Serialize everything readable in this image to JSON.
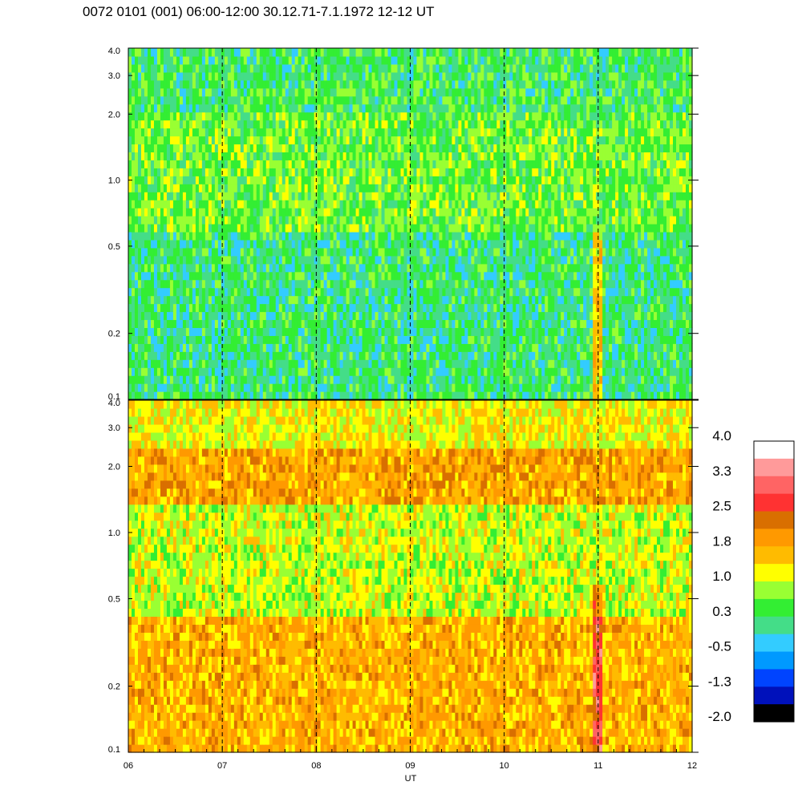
{
  "title": "0072 0101 (001) 06:00-12:00 30.12.71-7.1.1972  12-12 UT",
  "chart_data": {
    "type": "heatmap",
    "title": "0072 0101 (001) 06:00-12:00 30.12.71-7.1.1972  12-12 UT",
    "xlabel": "UT",
    "x_tick_labels": [
      "06",
      "07",
      "08",
      "09",
      "10",
      "11",
      "12"
    ],
    "x_range": [
      6,
      12
    ],
    "dashed_vertical_lines_at": [
      7,
      8,
      9,
      10,
      11
    ],
    "y_scale": "log",
    "y_range": [
      0.1,
      4.0
    ],
    "y_tick_labels": [
      "4.0",
      "3.0",
      "2.0",
      "1.0",
      "0.5",
      "0.2",
      "0.1"
    ],
    "y_tick_values": [
      4.0,
      3.0,
      2.0,
      1.0,
      0.5,
      0.2,
      0.1
    ],
    "panels": [
      {
        "name": "upper",
        "dominant_levels_by_band": [
          {
            "y_from": 2.0,
            "y_to": 4.0,
            "level": 0.3
          },
          {
            "y_from": 0.6,
            "y_to": 2.0,
            "level": 0.6
          },
          {
            "y_from": 0.1,
            "y_to": 0.6,
            "level": 0.2
          }
        ]
      },
      {
        "name": "lower",
        "dominant_levels_by_band": [
          {
            "y_from": 2.5,
            "y_to": 4.0,
            "level": 1.2
          },
          {
            "y_from": 1.3,
            "y_to": 2.5,
            "level": 1.8
          },
          {
            "y_from": 0.4,
            "y_to": 1.3,
            "level": 1.0
          },
          {
            "y_from": 0.1,
            "y_to": 0.4,
            "level": 1.7
          }
        ]
      }
    ],
    "colorbar": {
      "labels": [
        "4.0",
        "3.3",
        "2.5",
        "1.8",
        "1.0",
        "0.3",
        "-0.5",
        "-1.3",
        "-2.0"
      ],
      "colors_top_to_bottom": [
        "#ffffff",
        "#ff9a9a",
        "#ff6464",
        "#ff3232",
        "#d96f00",
        "#ff9900",
        "#ffbb00",
        "#ffff00",
        "#99ff33",
        "#33ee33",
        "#44dd88",
        "#33ccff",
        "#0099ff",
        "#0044ff",
        "#0011bb",
        "#000000"
      ]
    }
  }
}
